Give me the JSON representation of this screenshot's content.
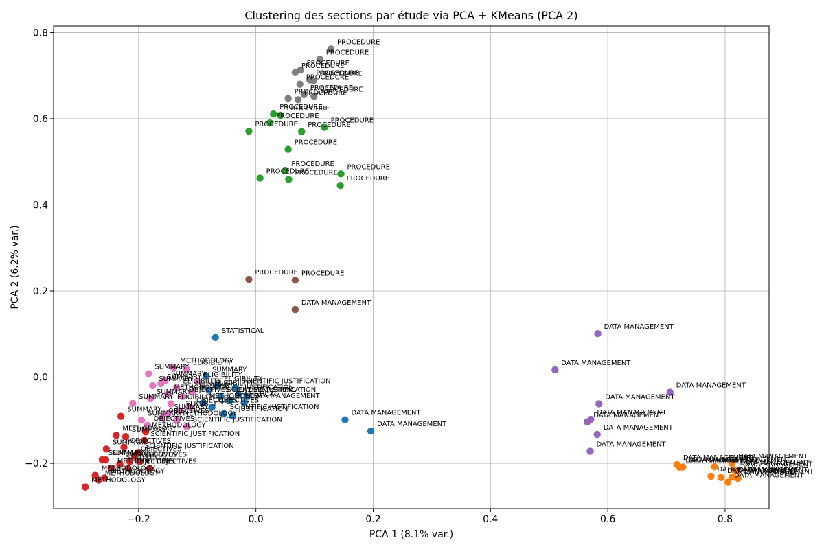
{
  "chart_data": {
    "type": "scatter",
    "title": "Clustering des sections par étude via PCA + KMeans (PCA 2)",
    "xlabel": "PCA 1 (8.1% var.)",
    "ylabel": "PCA 2 (6.2% var.)",
    "xlim": [
      -0.345,
      0.875
    ],
    "ylim": [
      -0.305,
      0.815
    ],
    "xticks": [
      -0.2,
      0.0,
      0.2,
      0.4,
      0.6,
      0.8
    ],
    "xtick_labels": [
      "−0.2",
      "0.0",
      "0.2",
      "0.4",
      "0.6",
      "0.8"
    ],
    "yticks": [
      -0.2,
      0.0,
      0.2,
      0.4,
      0.6,
      0.8
    ],
    "ytick_labels": [
      "−0.2",
      "0.0",
      "0.2",
      "0.4",
      "0.6",
      "0.8"
    ],
    "grid": true,
    "legend": "none",
    "colors": {
      "gray": "#7f7f7f",
      "green": "#2ca02c",
      "brown": "#8c564b",
      "blue": "#1f77b4",
      "purple": "#9467bd",
      "orange": "#ff7f0e",
      "red": "#d62728",
      "pink": "#e377c2"
    },
    "series": [
      {
        "color": "#7f7f7f",
        "points": [
          {
            "x": 0.128,
            "y": 0.762,
            "label": "PROCEDURE"
          },
          {
            "x": 0.109,
            "y": 0.738,
            "label": "PROCEDURE"
          },
          {
            "x": 0.076,
            "y": 0.713,
            "label": "PROCEDURE"
          },
          {
            "x": 0.067,
            "y": 0.707,
            "label": "PROCEDURE"
          },
          {
            "x": 0.092,
            "y": 0.69,
            "label": "PROCEDURE"
          },
          {
            "x": 0.098,
            "y": 0.688,
            "label": "PROCEDURE"
          },
          {
            "x": 0.075,
            "y": 0.68,
            "label": "PROCEDURE"
          },
          {
            "x": 0.082,
            "y": 0.656,
            "label": "PROCEDURE"
          },
          {
            "x": 0.099,
            "y": 0.652,
            "label": "PROCEDURE"
          },
          {
            "x": 0.055,
            "y": 0.647,
            "label": "PROCEDURE"
          },
          {
            "x": 0.072,
            "y": 0.644,
            "label": "PROCEDURE"
          }
        ]
      },
      {
        "color": "#2ca02c",
        "points": [
          {
            "x": 0.03,
            "y": 0.611,
            "label": "PROCEDURE"
          },
          {
            "x": 0.042,
            "y": 0.608,
            "label": "PROCEDURE"
          },
          {
            "x": 0.024,
            "y": 0.59,
            "label": "PROCEDURE"
          },
          {
            "x": 0.117,
            "y": 0.58,
            "label": "PROCEDURE"
          },
          {
            "x": 0.078,
            "y": 0.57,
            "label": "PROCEDURE"
          },
          {
            "x": -0.012,
            "y": 0.571,
            "label": "PROCEDURE"
          },
          {
            "x": 0.055,
            "y": 0.529,
            "label": "PROCEDURE"
          },
          {
            "x": 0.05,
            "y": 0.479,
            "label": "PROCEDURE"
          },
          {
            "x": 0.145,
            "y": 0.472,
            "label": "PROCEDURE"
          },
          {
            "x": 0.007,
            "y": 0.462,
            "label": "PROCEDURE"
          },
          {
            "x": 0.056,
            "y": 0.459,
            "label": "PROCEDURE"
          },
          {
            "x": 0.144,
            "y": 0.445,
            "label": "PROCEDURE"
          }
        ]
      },
      {
        "color": "#8c564b",
        "points": [
          {
            "x": -0.012,
            "y": 0.227,
            "label": "PROCEDURE"
          },
          {
            "x": 0.067,
            "y": 0.225,
            "label": "PROCEDURE"
          },
          {
            "x": 0.067,
            "y": 0.157,
            "label": "DATA MANAGEMENT"
          }
        ]
      },
      {
        "color": "#1f77b4",
        "points": [
          {
            "x": -0.069,
            "y": 0.092,
            "label": "STATISTICAL"
          },
          {
            "x": 0.152,
            "y": -0.099,
            "label": "DATA MANAGEMENT"
          },
          {
            "x": 0.196,
            "y": -0.125,
            "label": "DATA MANAGEMENT"
          },
          {
            "x": -0.08,
            "y": -0.03,
            "label": "ELIGIBILITY"
          },
          {
            "x": -0.06,
            "y": -0.045,
            "label": "SCIENTIFIC JUSTIFICATION"
          },
          {
            "x": -0.045,
            "y": -0.055,
            "label": "STATISTICAL"
          },
          {
            "x": -0.03,
            "y": -0.04,
            "label": "JUSTIFICATION"
          },
          {
            "x": -0.075,
            "y": -0.07,
            "label": "OBJECTIVES"
          },
          {
            "x": -0.055,
            "y": -0.085,
            "label": "SCIENTIFIC JUSTIFICATION"
          },
          {
            "x": -0.04,
            "y": -0.09,
            "label": "JUSTIFICATION"
          },
          {
            "x": -0.02,
            "y": -0.06,
            "label": "DATA MANAGEMENT"
          },
          {
            "x": -0.065,
            "y": -0.02,
            "label": "ELIGIBILITY"
          },
          {
            "x": -0.09,
            "y": -0.06,
            "label": "METHODOLOGY"
          },
          {
            "x": -0.035,
            "y": -0.025,
            "label": "SCIENTIFIC JUSTIFICATION"
          },
          {
            "x": -0.015,
            "y": -0.045,
            "label": "STATISTICAL"
          },
          {
            "x": -0.085,
            "y": 0.002,
            "label": "SUMMARY"
          }
        ]
      },
      {
        "color": "#9467bd",
        "points": [
          {
            "x": 0.583,
            "y": 0.101,
            "label": "DATA MANAGEMENT"
          },
          {
            "x": 0.51,
            "y": 0.017,
            "label": "DATA MANAGEMENT"
          },
          {
            "x": 0.706,
            "y": -0.035,
            "label": "DATA MANAGEMENT"
          },
          {
            "x": 0.585,
            "y": -0.062,
            "label": "DATA MANAGEMENT"
          },
          {
            "x": 0.571,
            "y": -0.098,
            "label": "DATA MANAGEMENT"
          },
          {
            "x": 0.565,
            "y": -0.104,
            "label": "DATA MANAGEMENT"
          },
          {
            "x": 0.582,
            "y": -0.133,
            "label": "DATA MANAGEMENT"
          },
          {
            "x": 0.57,
            "y": -0.172,
            "label": "DATA MANAGEMENT"
          }
        ]
      },
      {
        "color": "#ff7f0e",
        "points": [
          {
            "x": 0.718,
            "y": -0.203,
            "label": "DATA MANAGEMENT"
          },
          {
            "x": 0.722,
            "y": -0.209,
            "label": "DATA MANAGEMENT"
          },
          {
            "x": 0.728,
            "y": -0.209,
            "label": "DATA MANAGEMENT"
          },
          {
            "x": 0.782,
            "y": -0.208,
            "label": "DATA MANAGEMENT"
          },
          {
            "x": 0.812,
            "y": -0.2,
            "label": "DATA MANAGEMENT"
          },
          {
            "x": 0.815,
            "y": -0.215,
            "label": "DATA MANAGEMENT"
          },
          {
            "x": 0.82,
            "y": -0.218,
            "label": "DATA MANAGEMENT"
          },
          {
            "x": 0.776,
            "y": -0.23,
            "label": "DATA MANAGEMENT"
          },
          {
            "x": 0.793,
            "y": -0.233,
            "label": "DATA MANAGEMENT"
          },
          {
            "x": 0.812,
            "y": -0.232,
            "label": "DATA MANAGEMENT"
          },
          {
            "x": 0.822,
            "y": -0.235,
            "label": "DATA MANAGEMENT"
          },
          {
            "x": 0.805,
            "y": -0.244,
            "label": "DATA MANAGEMENT"
          }
        ]
      },
      {
        "color": "#d62728",
        "points": [
          {
            "x": -0.23,
            "y": -0.091,
            "label": "SUMMARY"
          },
          {
            "x": -0.188,
            "y": -0.127,
            "label": "METHODOLOGY"
          },
          {
            "x": -0.238,
            "y": -0.135,
            "label": "METHODOLOGY"
          },
          {
            "x": -0.222,
            "y": -0.138,
            "label": "SUMMARY"
          },
          {
            "x": -0.19,
            "y": -0.147,
            "label": "SCIENTIFIC JUSTIFICATION"
          },
          {
            "x": -0.255,
            "y": -0.167,
            "label": "SUMMARY"
          },
          {
            "x": -0.225,
            "y": -0.163,
            "label": "OBJECTIVES"
          },
          {
            "x": -0.2,
            "y": -0.176,
            "label": "SCIENTIFIC JUSTIFICATION"
          },
          {
            "x": -0.207,
            "y": -0.183,
            "label": "OBJECTIVES"
          },
          {
            "x": -0.262,
            "y": -0.192,
            "label": "SUMMARY"
          },
          {
            "x": -0.256,
            "y": -0.192,
            "label": "SUMMARY"
          },
          {
            "x": -0.198,
            "y": -0.196,
            "label": "OBJECTIVES"
          },
          {
            "x": -0.215,
            "y": -0.196,
            "label": "OBJECTIVES"
          },
          {
            "x": -0.232,
            "y": -0.202,
            "label": "STATISTICAL"
          },
          {
            "x": -0.247,
            "y": -0.211,
            "label": "METHODOLOGY"
          },
          {
            "x": -0.218,
            "y": -0.212,
            "label": "OBJECTIVES"
          },
          {
            "x": -0.181,
            "y": -0.212,
            "label": "OBJECTIVES"
          },
          {
            "x": -0.274,
            "y": -0.228,
            "label": "METHODOLOGY"
          },
          {
            "x": -0.258,
            "y": -0.234,
            "label": "METHODOLOGY"
          },
          {
            "x": -0.268,
            "y": -0.239,
            "label": "METHODOLOGY"
          },
          {
            "x": -0.291,
            "y": -0.255,
            "label": "METHODOLOGY"
          }
        ]
      },
      {
        "color": "#e377c2",
        "points": [
          {
            "x": -0.14,
            "y": 0.022,
            "label": "METHODOLOGY"
          },
          {
            "x": -0.118,
            "y": 0.018,
            "label": "ELIGIBILITY"
          },
          {
            "x": -0.183,
            "y": 0.008,
            "label": "SUMMARY"
          },
          {
            "x": -0.155,
            "y": -0.008,
            "label": "SUMMARY"
          },
          {
            "x": -0.162,
            "y": -0.015,
            "label": "SUMMARY"
          },
          {
            "x": -0.176,
            "y": -0.02,
            "label": "SUMMARY"
          },
          {
            "x": -0.135,
            "y": -0.025,
            "label": "ELIGIBILITY"
          },
          {
            "x": -0.15,
            "y": -0.04,
            "label": "METHODOLOGY"
          },
          {
            "x": -0.125,
            "y": -0.045,
            "label": "OBJECTIVES"
          },
          {
            "x": -0.21,
            "y": -0.061,
            "label": "SUMMARY"
          },
          {
            "x": -0.18,
            "y": -0.05,
            "label": "SUMMARY"
          },
          {
            "x": -0.145,
            "y": -0.062,
            "label": "ELIGIBILITY"
          },
          {
            "x": -0.112,
            "y": -0.07,
            "label": "OBJECTIVES"
          },
          {
            "x": -0.15,
            "y": -0.085,
            "label": "SUMMARY"
          },
          {
            "x": -0.195,
            "y": -0.1,
            "label": "SUMMARY"
          },
          {
            "x": -0.16,
            "y": -0.095,
            "label": "OBJECTIVES"
          },
          {
            "x": -0.135,
            "y": -0.1,
            "label": "METHODOLOGY"
          },
          {
            "x": -0.185,
            "y": -0.112,
            "label": "OBJECTIVES"
          },
          {
            "x": -0.118,
            "y": -0.115,
            "label": "SCIENTIFIC JUSTIFICATION"
          },
          {
            "x": -0.13,
            "y": -0.078,
            "label": "ELIGIBILITY"
          },
          {
            "x": -0.108,
            "y": -0.035,
            "label": "SUMMARY"
          },
          {
            "x": -0.1,
            "y": -0.01,
            "label": "ELIGIBILITY"
          }
        ]
      }
    ]
  }
}
